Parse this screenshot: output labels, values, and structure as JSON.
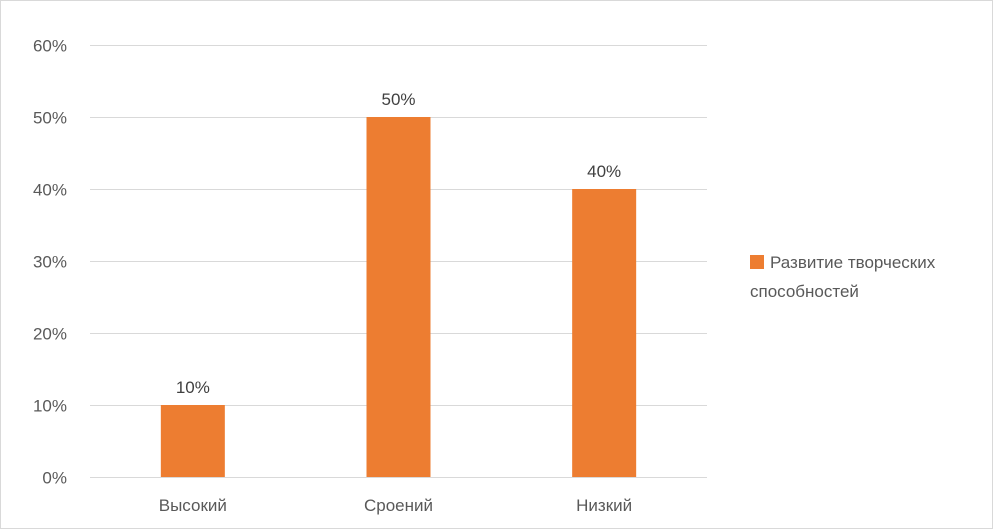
{
  "chart_data": {
    "type": "bar",
    "title": "",
    "xlabel": "",
    "ylabel": "",
    "categories": [
      "Высокий",
      "Сроений",
      "Низкий"
    ],
    "series": [
      {
        "name": "Развитие творческих способностей",
        "values": [
          0.1,
          0.5,
          0.4
        ],
        "data_labels": [
          "10%",
          "50%",
          "40%"
        ]
      }
    ],
    "ylim": [
      0,
      0.6
    ],
    "yticks": [
      0,
      0.1,
      0.2,
      0.3,
      0.4,
      0.5,
      0.6
    ],
    "ytick_labels": [
      "0%",
      "10%",
      "20%",
      "30%",
      "40%",
      "50%",
      "60%"
    ],
    "grid": true,
    "legend": {
      "position": "right",
      "lines": [
        "Развитие творческих",
        "способностей"
      ]
    },
    "colors": {
      "bar": "#ed7d31",
      "grid": "#d9d9d9",
      "text": "#595959"
    }
  }
}
